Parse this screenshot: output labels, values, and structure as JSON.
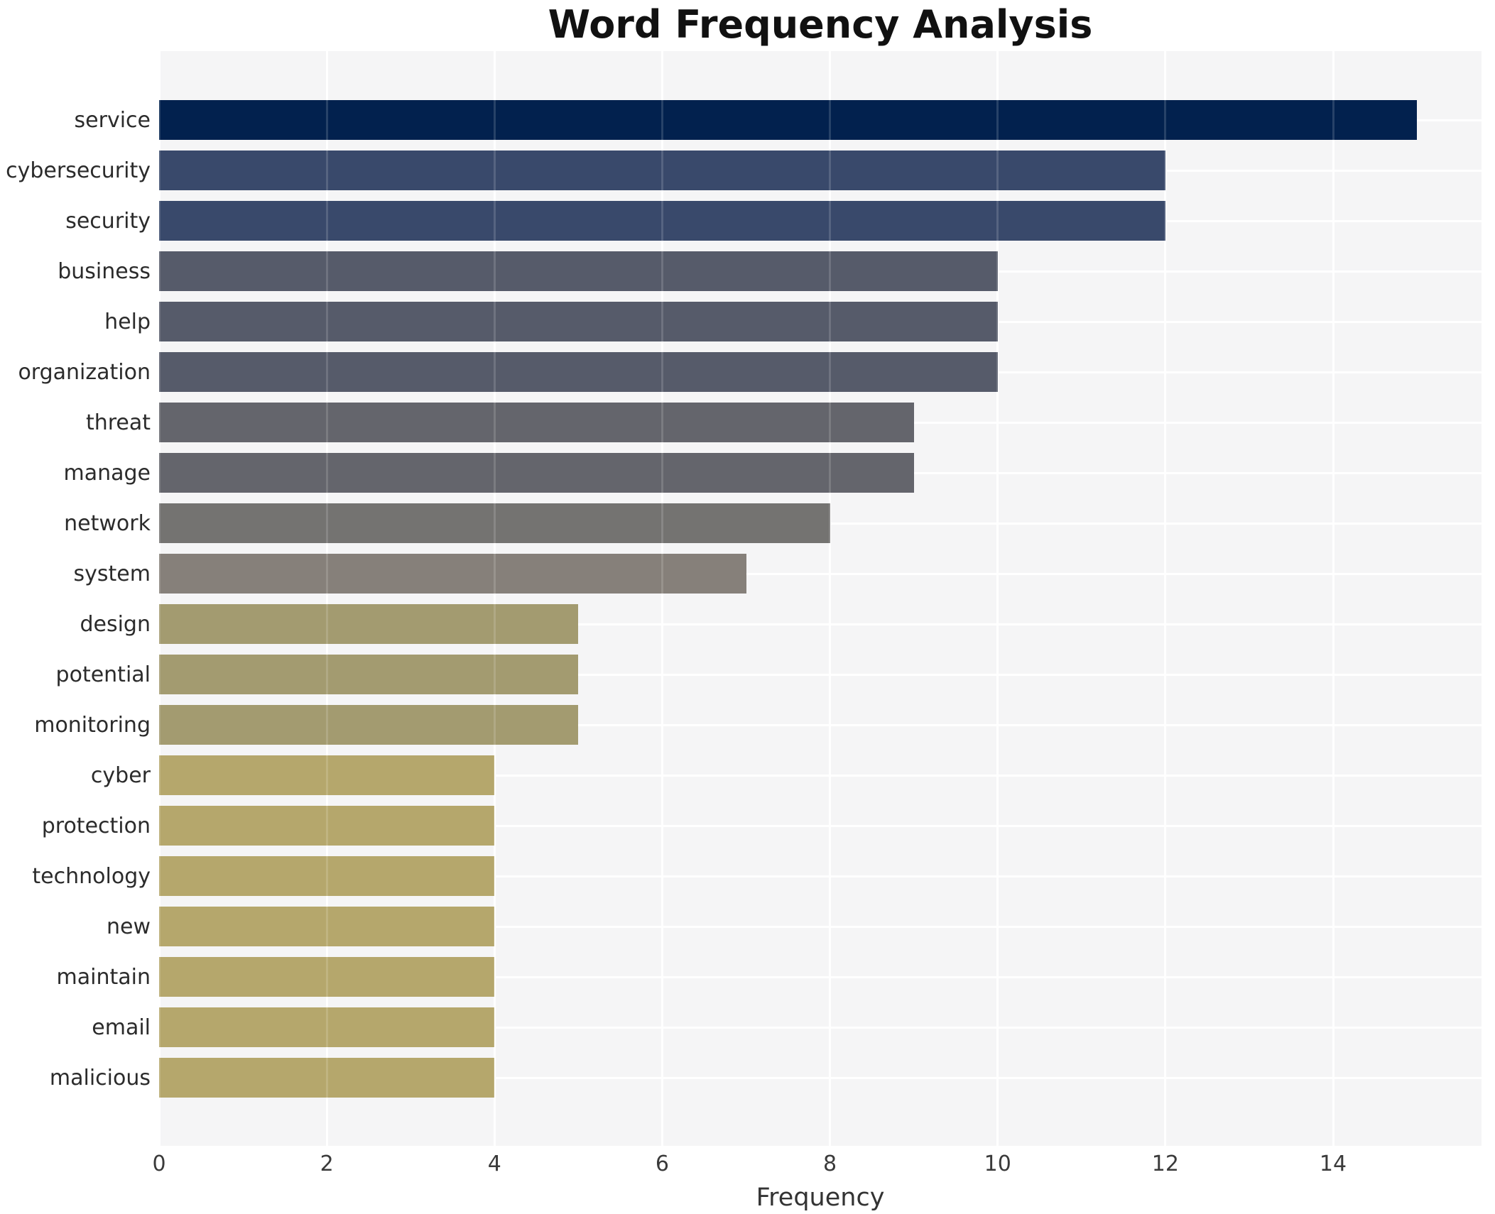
{
  "chart_data": {
    "type": "bar",
    "orientation": "horizontal",
    "title": "Word Frequency Analysis",
    "xlabel": "Frequency",
    "ylabel": "",
    "categories": [
      "service",
      "cybersecurity",
      "security",
      "business",
      "help",
      "organization",
      "threat",
      "manage",
      "network",
      "system",
      "design",
      "potential",
      "monitoring",
      "cyber",
      "protection",
      "technology",
      "new",
      "maintain",
      "email",
      "malicious"
    ],
    "values": [
      15,
      12,
      12,
      10,
      10,
      10,
      9,
      9,
      8,
      7,
      5,
      5,
      5,
      4,
      4,
      4,
      4,
      4,
      4,
      4
    ],
    "bar_colors": [
      "#02214E",
      "#39496B",
      "#39496B",
      "#565B6A",
      "#565B6A",
      "#565B6A",
      "#64656C",
      "#64656C",
      "#747371",
      "#86807A",
      "#A39B70",
      "#A39B70",
      "#A39B70",
      "#B5A76C",
      "#B5A76C",
      "#B5A76C",
      "#B5A76C",
      "#B5A76C",
      "#B5A76C",
      "#B5A76C"
    ],
    "xticks": [
      0,
      2,
      4,
      6,
      8,
      10,
      12,
      14
    ],
    "xlim": [
      0,
      15.77
    ],
    "grid": true,
    "legend_position": "none",
    "plot_bg_color": "#F5F5F6",
    "figure_bg_color": "#FFFFFF",
    "grid_color": "#FFFFFF",
    "title_color": "#111111",
    "tick_label_color": "#3A3A3A",
    "axis_label_color": "#333333",
    "category_label_color": "#2B2B2B"
  }
}
